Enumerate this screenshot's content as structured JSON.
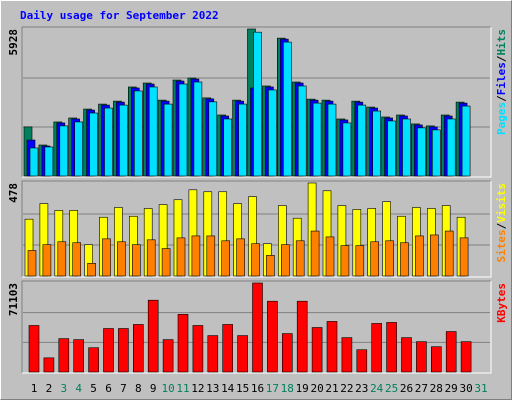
{
  "chart_data": [
    {
      "type": "bar",
      "title": "Daily usage for September 2022",
      "ylim": [
        0,
        5928
      ],
      "yticks": [
        5928
      ],
      "legend_separator": "/",
      "series": [
        {
          "name": "Hits",
          "color": "#00805c",
          "values": [
            1980,
            1250,
            2180,
            2340,
            2700,
            2900,
            3020,
            3590,
            3750,
            3060,
            3870,
            3950,
            3150,
            2460,
            3060,
            5928,
            3630,
            5560,
            3790,
            3100,
            3060,
            2300,
            3020,
            2780,
            2380,
            2460,
            2100,
            2020,
            2460,
            2980,
            null
          ]
        },
        {
          "name": "Files",
          "color": "#0000ff",
          "values": [
            1450,
            1210,
            2140,
            2300,
            2660,
            2860,
            2980,
            3550,
            3710,
            3020,
            3830,
            3910,
            3110,
            2420,
            3020,
            3550,
            3590,
            5520,
            3750,
            3060,
            3020,
            2260,
            2980,
            2740,
            2340,
            2420,
            2060,
            1980,
            2420,
            2940,
            null
          ]
        },
        {
          "name": "Pages",
          "color": "#00e0ff",
          "values": [
            1130,
            1170,
            2020,
            2180,
            2540,
            2740,
            2860,
            3430,
            3590,
            2900,
            3710,
            3790,
            2990,
            2300,
            2900,
            5800,
            3470,
            5400,
            3630,
            2940,
            2900,
            2140,
            2860,
            2620,
            2220,
            2300,
            1940,
            1860,
            2300,
            2820,
            null
          ]
        }
      ]
    },
    {
      "type": "bar",
      "ylim": [
        0,
        478
      ],
      "yticks": [
        478
      ],
      "legend_separator": "/",
      "series": [
        {
          "name": "Visits",
          "color": "#ffff00",
          "values": [
            292,
            372,
            337,
            337,
            161,
            302,
            352,
            307,
            347,
            367,
            392,
            443,
            433,
            433,
            372,
            408,
            166,
            362,
            297,
            478,
            438,
            362,
            342,
            347,
            382,
            307,
            352,
            347,
            362,
            302,
            null
          ]
        },
        {
          "name": "Sites",
          "color": "#ff8000",
          "values": [
            131,
            161,
            176,
            171,
            65,
            191,
            176,
            161,
            186,
            141,
            196,
            206,
            206,
            181,
            191,
            166,
            106,
            161,
            181,
            231,
            201,
            156,
            156,
            176,
            181,
            171,
            206,
            211,
            231,
            196,
            null
          ]
        }
      ]
    },
    {
      "type": "bar",
      "ylim": [
        0,
        71103
      ],
      "yticks": [
        71103
      ],
      "categories": [
        "1",
        "2",
        "3",
        "4",
        "5",
        "6",
        "7",
        "8",
        "9",
        "10",
        "11",
        "12",
        "13",
        "14",
        "15",
        "16",
        "17",
        "18",
        "19",
        "20",
        "21",
        "22",
        "23",
        "24",
        "25",
        "26",
        "27",
        "28",
        "29",
        "30",
        "31"
      ],
      "category_colors": [
        "#000000",
        "#000000",
        "#00805c",
        "#00805c",
        "#000000",
        "#000000",
        "#000000",
        "#000000",
        "#000000",
        "#00805c",
        "#00805c",
        "#000000",
        "#000000",
        "#000000",
        "#000000",
        "#000000",
        "#00805c",
        "#00805c",
        "#000000",
        "#000000",
        "#000000",
        "#000000",
        "#000000",
        "#00805c",
        "#00805c",
        "#000000",
        "#000000",
        "#000000",
        "#000000",
        "#000000",
        "#00805c"
      ],
      "series": [
        {
          "name": "KBytes",
          "color": "#ff0000",
          "values": [
            37170,
            11310,
            26660,
            25860,
            19390,
            34740,
            34740,
            37980,
            57370,
            25860,
            46060,
            37170,
            29090,
            37980,
            29090,
            71103,
            56560,
            30700,
            56560,
            35550,
            40400,
            27470,
            17780,
            38780,
            39590,
            27470,
            24240,
            20200,
            32320,
            24240,
            null
          ]
        }
      ]
    }
  ]
}
